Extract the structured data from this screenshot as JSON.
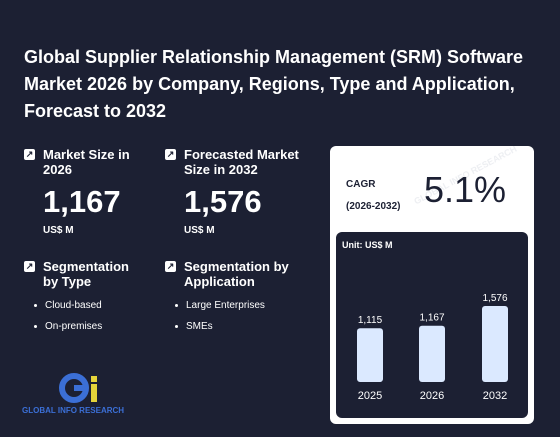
{
  "report": {
    "title": "Global Supplier Relationship Management (SRM) Software Market 2026 by Company, Regions, Type and Application, Forecast to 2032"
  },
  "stats": {
    "market_size": {
      "label": "Market Size in 2026",
      "value": "1,167",
      "unit": "US$ M"
    },
    "forecast": {
      "label": "Forecasted Market Size in 2032",
      "value": "1,576",
      "unit": "US$ M"
    }
  },
  "segmentation": {
    "type": {
      "label": "Segmentation by Type",
      "items": [
        "Cloud-based",
        "On-premises"
      ]
    },
    "application": {
      "label": "Segmentation by Application",
      "items": [
        "Large Enterprises",
        "SMEs"
      ]
    }
  },
  "cagr": {
    "label_line1": "CAGR",
    "label_line2": "(2026-2032)",
    "value": "5.1%"
  },
  "chart_data": {
    "type": "bar",
    "unit_label": "Unit: US$ M",
    "categories": [
      "2025",
      "2026",
      "2032"
    ],
    "values": [
      1115,
      1167,
      1576
    ],
    "value_labels": [
      "1,115",
      "1,167",
      "1,576"
    ],
    "ylim": [
      0,
      1576
    ],
    "bar_color": "#dbe9ff",
    "grid": false
  },
  "logo": {
    "text": "GLOBAL INFO RESEARCH"
  },
  "colors": {
    "background": "#1c2033",
    "card": "#ffffff",
    "accent": "#3b6fd6"
  }
}
